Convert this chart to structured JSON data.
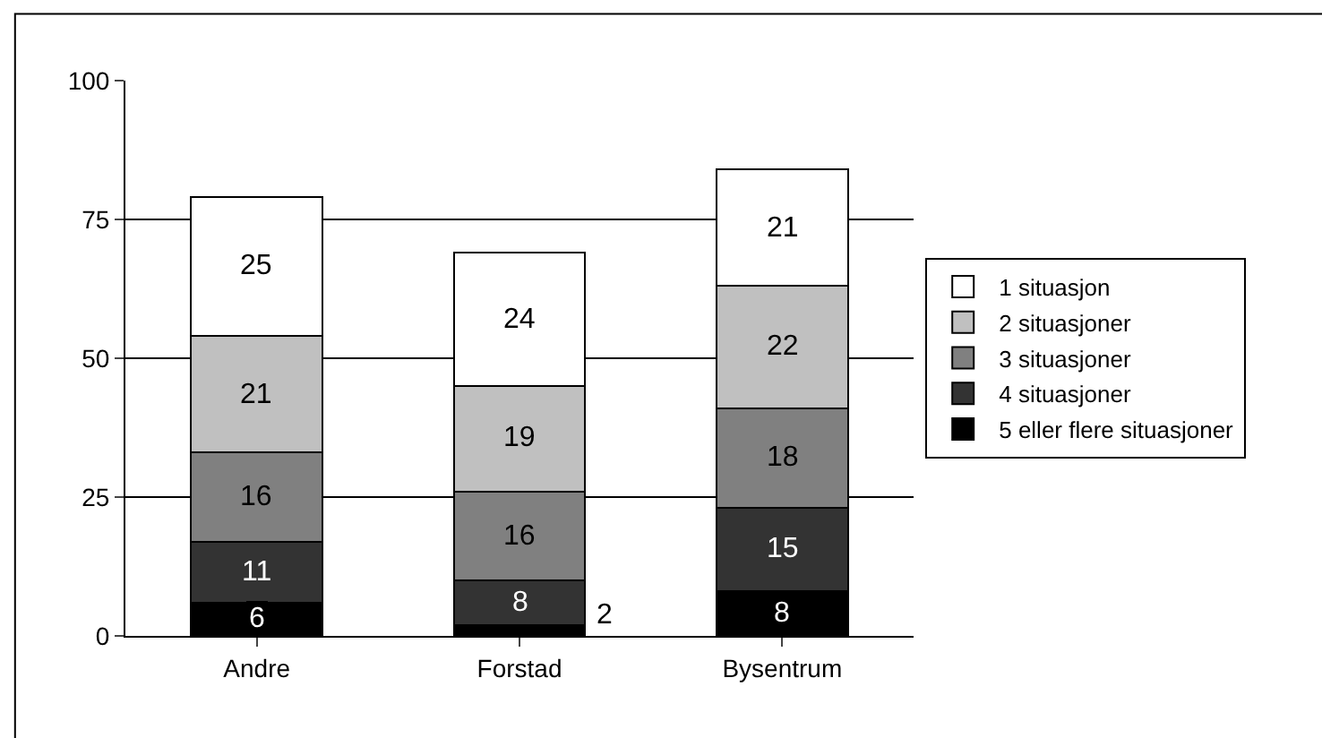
{
  "chart_data": {
    "type": "bar",
    "stacked": true,
    "categories": [
      "Andre",
      "Forstad",
      "Bysentrum"
    ],
    "series": [
      {
        "name": "5 eller flere situasjoner",
        "color": "#000000",
        "values": [
          6,
          2,
          8
        ]
      },
      {
        "name": "4 situasjoner",
        "color": "#333333",
        "values": [
          11,
          8,
          15
        ]
      },
      {
        "name": "3 situasjoner",
        "color": "#808080",
        "values": [
          16,
          16,
          18
        ]
      },
      {
        "name": "2 situasjoner",
        "color": "#c0c0c0",
        "values": [
          21,
          19,
          22
        ]
      },
      {
        "name": "1 situasjon",
        "color": "#ffffff",
        "values": [
          25,
          24,
          21
        ]
      }
    ],
    "ylim": [
      0,
      100
    ],
    "yticks": [
      0,
      25,
      50,
      75,
      100
    ],
    "grid": "y",
    "legend": "right",
    "data_labels": true
  }
}
